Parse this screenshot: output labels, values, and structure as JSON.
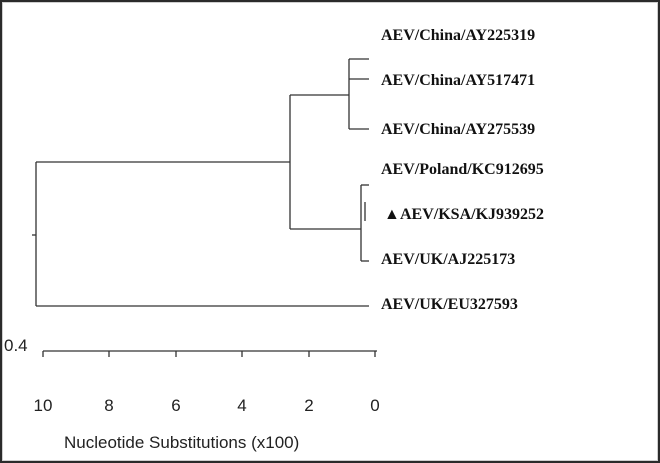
{
  "tree": {
    "leaves": [
      {
        "label": "AEV/China/AY225319",
        "marker": false
      },
      {
        "label": "AEV/China/AY517471",
        "marker": false
      },
      {
        "label": "AEV/China/AY275539",
        "marker": false
      },
      {
        "label": "AEV/Poland/KC912695",
        "marker": false
      },
      {
        "label": "AEV/KSA/KJ939252",
        "marker": true
      },
      {
        "label": "AEV/UK/AJ225173",
        "marker": false
      },
      {
        "label": "AEV/UK/EU327593",
        "marker": false
      }
    ],
    "marker_glyph": "▲",
    "scale_bar_label": "0.4",
    "axis": {
      "ticks": [
        "10",
        "8",
        "6",
        "4",
        "2",
        "0"
      ],
      "label": "Nucleotide Substitutions (x100)"
    }
  }
}
